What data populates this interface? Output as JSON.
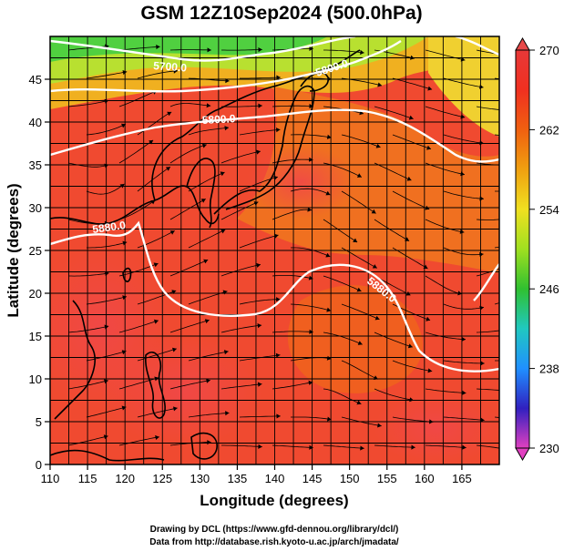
{
  "title": "GSM 12Z10Sep2024 (500.0hPa)",
  "xlabel": "Longitude (degrees)",
  "ylabel": "Latitude  (degrees)",
  "footer": {
    "line1": "Drawing by DCL (https://www.gfd-dennou.org/library/dcl/)",
    "line2": "Data from http://database.rish.kyoto-u.ac.jp/arch/jmadata/"
  },
  "chart_data": {
    "type": "heatmap",
    "field": "temperature with wind streamlines and geopotential height contours",
    "x_ticks": [
      110,
      115,
      120,
      125,
      130,
      135,
      140,
      145,
      150,
      155,
      160,
      165
    ],
    "y_ticks": [
      0,
      5,
      10,
      15,
      20,
      25,
      30,
      35,
      40,
      45
    ],
    "xlim": [
      110,
      170
    ],
    "ylim": [
      0,
      50
    ],
    "grid": true,
    "colorbar": {
      "ticks": [
        230,
        238,
        246,
        254,
        262,
        270
      ],
      "range": [
        230,
        270
      ],
      "colors": [
        "#e040c0",
        "#3020c0",
        "#2090ff",
        "#20c8c0",
        "#30c030",
        "#a0e020",
        "#f0e020",
        "#f0a010",
        "#f06010",
        "#f03020",
        "#e83838"
      ]
    },
    "contours": [
      {
        "label": "5700.0"
      },
      {
        "label": "5800.0"
      },
      {
        "label": "5800.0"
      },
      {
        "label": "5880.0"
      },
      {
        "label": "5880.0"
      }
    ]
  }
}
